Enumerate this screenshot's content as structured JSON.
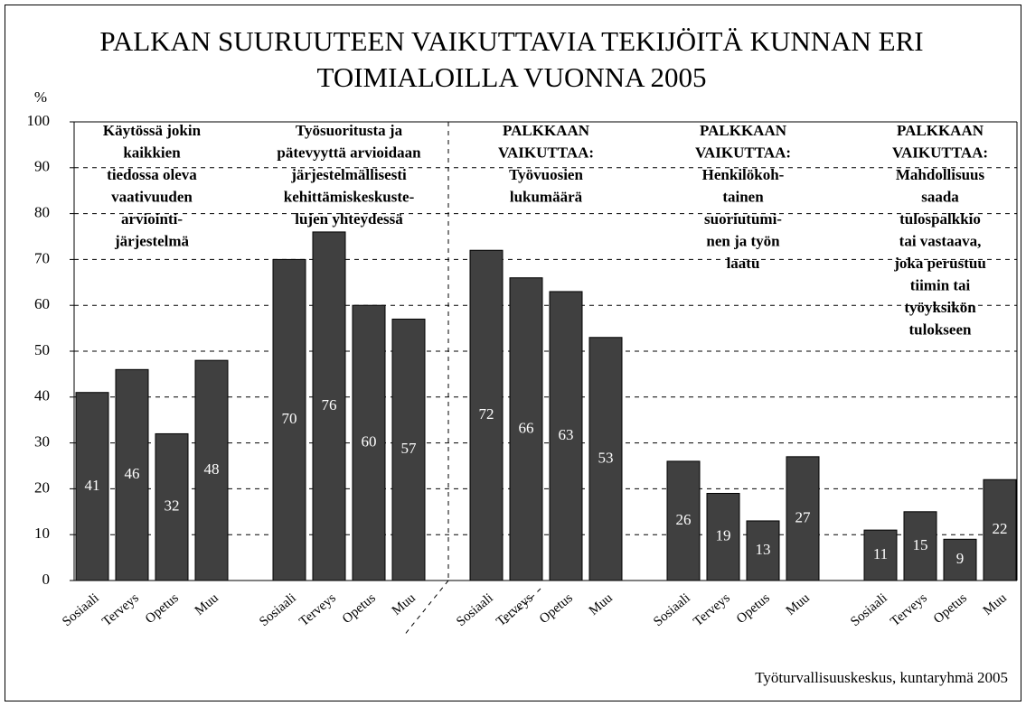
{
  "chart_data": {
    "type": "bar",
    "title": [
      "PALKAN SUURUUTEEN VAIKUTTAVIA TEKIJÖITÄ KUNNAN ERI",
      "TOIMIALOILLA VUONNA 2005"
    ],
    "y_label": "%",
    "ylim": [
      0,
      100
    ],
    "yticks": [
      0,
      10,
      20,
      30,
      40,
      50,
      60,
      70,
      80,
      90,
      100
    ],
    "grid": true,
    "color": "#404040",
    "groups": [
      {
        "annotation": [
          "Käytössä jokin",
          "kaikkien",
          "tiedossa oleva",
          "vaativuuden",
          "arviointi-",
          "järjestelmä"
        ],
        "categories": [
          "Sosiaali",
          "Terveys",
          "Opetus",
          "Muu"
        ],
        "values": [
          41,
          46,
          32,
          48
        ]
      },
      {
        "annotation": [
          "Työsuoritusta ja",
          "pätevyyttä arvioidaan",
          "järjestelmällisesti",
          "kehittämiskeskuste-",
          "lujen yhteydessä"
        ],
        "categories": [
          "Sosiaali",
          "Terveys",
          "Opetus",
          "Muu"
        ],
        "values": [
          70,
          76,
          60,
          57
        ]
      },
      {
        "annotation": [
          "PALKKAAN",
          "VAIKUTTAA:",
          "Työvuosien",
          "lukumäärä"
        ],
        "categories": [
          "Sosiaali",
          "Terveys",
          "Opetus",
          "Muu"
        ],
        "values": [
          72,
          66,
          63,
          53
        ]
      },
      {
        "annotation": [
          "PALKKAAN",
          "VAIKUTTAA:",
          "Henkilökoh-",
          "tainen",
          "suoriutumi-",
          "nen ja työn",
          "laatu"
        ],
        "categories": [
          "Sosiaali",
          "Terveys",
          "Opetus",
          "Muu"
        ],
        "values": [
          26,
          19,
          13,
          27
        ]
      },
      {
        "annotation": [
          "PALKKAAN",
          "VAIKUTTAA:",
          "Mahdollisuus",
          "saada",
          "tulospalkkio",
          "tai vastaava,",
          "joka perustuu",
          "tiimin tai",
          "työyksikön",
          "tulokseen"
        ],
        "categories": [
          "Sosiaali",
          "Terveys",
          "Opetus",
          "Muu"
        ],
        "values": [
          11,
          15,
          9,
          22
        ]
      }
    ],
    "source": "Työturvallisuuskeskus, kuntaryhmä 2005"
  }
}
